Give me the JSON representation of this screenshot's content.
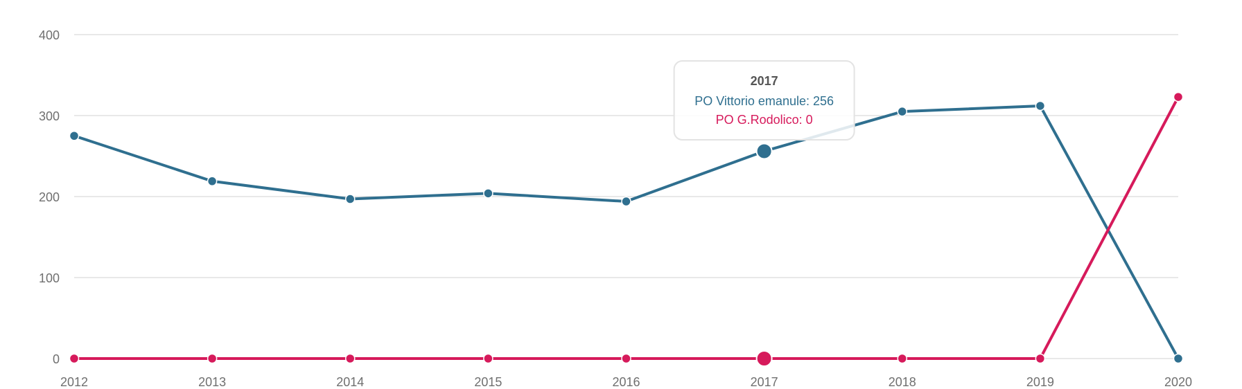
{
  "chart_data": {
    "type": "line",
    "title": "",
    "xlabel": "",
    "ylabel": "",
    "categories": [
      "2012",
      "2013",
      "2014",
      "2015",
      "2016",
      "2017",
      "2018",
      "2019",
      "2020"
    ],
    "ylim": [
      0,
      400
    ],
    "yticks": [
      0,
      100,
      200,
      300,
      400
    ],
    "grid": true,
    "series": [
      {
        "name": "PO Vittorio emanule",
        "color": "#2f6f8f",
        "values": [
          275,
          219,
          197,
          204,
          194,
          256,
          305,
          312,
          0
        ]
      },
      {
        "name": "PO G.Rodolico",
        "color": "#d61a5b",
        "values": [
          0,
          0,
          0,
          0,
          0,
          0,
          0,
          0,
          323
        ]
      }
    ],
    "tooltip": {
      "category_index": 5,
      "title": "2017",
      "lines": [
        "PO Vittorio emanule: 256",
        "PO G.Rodolico: 0"
      ]
    }
  }
}
